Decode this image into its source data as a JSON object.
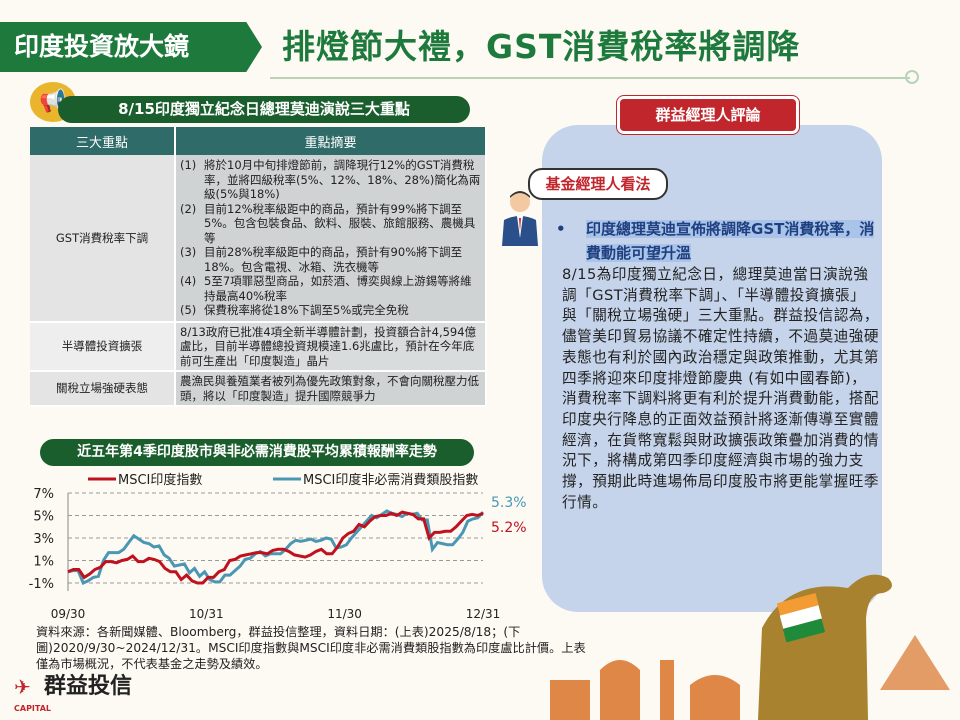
{
  "header": {
    "badge": "印度投資放大鏡",
    "title": "排燈節大禮，GST消費稅率將調降"
  },
  "table_section": {
    "title": "8/15印度獨立紀念日總理莫迪演說三大重點",
    "columns": [
      "三大重點",
      "重點摘要"
    ],
    "rows": [
      {
        "key": "GST消費稅率下調",
        "items": [
          {
            "n": "(1)",
            "t": "將於10月中旬排燈節前，調降現行12%的GST消費稅率，並將四級稅率(5%、12%、18%、28%)簡化為兩級(5%與18%)"
          },
          {
            "n": "(2)",
            "t": "目前12%稅率級距中的商品，預計有99%將下調至5%。包含包裝食品、飲料、服裝、旅館服務、農機具等"
          },
          {
            "n": "(3)",
            "t": "目前28%稅率級距中的商品，預計有90%將下調至18%。包含電視、冰箱、洗衣機等"
          },
          {
            "n": "(4)",
            "t": "5至7項罪惡型商品，如菸酒、博奕與線上游錫等將維持最高40%稅率"
          },
          {
            "n": "(5)",
            "t": "保費稅率將從18%下調至5%或完全免稅"
          }
        ]
      },
      {
        "key": "半導體投資擴張",
        "text": "8/13政府已批准4項全新半導體計劃，投資額合計4,594億盧比，目前半導體總投資規模達1.6兆盧比，預計在今年底前可生產出「印度製造」晶片"
      },
      {
        "key": "關稅立場強硬表態",
        "text": "農漁民與養殖業者被列為優先政策對象，不會向關稅壓力低頭，將以「印度製造」提升國際競爭力"
      }
    ]
  },
  "chart_section": {
    "title": "近五年第4季印度股市與非必需消費股平均累積報酬率走勢"
  },
  "chart_data": {
    "type": "line",
    "xlabels": [
      "09/30",
      "10/31",
      "11/30",
      "12/31"
    ],
    "ylabels": [
      "7%",
      "5%",
      "3%",
      "1%",
      "-1%"
    ],
    "ylim": [
      -1,
      7
    ],
    "grid": true,
    "legend": "top",
    "series": [
      {
        "name": "MSCI印度指數",
        "color": "#c0111f",
        "end_label": "5.2%",
        "values": [
          0,
          0.2,
          0.2,
          -0.5,
          -0.2,
          0.2,
          0.4,
          0.9,
          0.9,
          0.8,
          1.0,
          1.1,
          1.4,
          0.9,
          0.9,
          1.2,
          1.1,
          0.9,
          0.3,
          0.0,
          0.0,
          -0.7,
          -0.3,
          -0.8,
          -1.0,
          -1.0,
          -0.5,
          -0.5,
          0.0,
          0.2,
          1.0,
          1.1,
          1.4,
          1.5,
          1.6,
          1.7,
          1.7,
          1.6,
          1.9,
          2.0,
          2.0,
          1.8,
          1.5,
          1.4,
          1.3,
          1.5,
          1.8,
          2.0,
          1.6,
          1.6,
          2.2,
          3.0,
          3.4,
          3.6,
          4.2,
          4.0,
          4.5,
          4.9,
          5.0,
          5.0,
          5.2,
          5.0,
          5.3,
          5.2,
          5.1,
          4.7,
          4.7,
          3.0,
          3.5,
          3.5,
          3.6,
          3.6,
          4.0,
          4.5,
          5.0,
          5.1,
          5.0,
          5.2
        ]
      },
      {
        "name": "MSCI印度非必需消費類股指數",
        "color": "#4a97b4",
        "end_label": "5.3%",
        "values": [
          0,
          0.1,
          0.1,
          -1.0,
          -0.8,
          -0.5,
          -0.4,
          1.0,
          1.7,
          1.7,
          1.7,
          2.0,
          2.6,
          3.2,
          2.9,
          2.6,
          2.5,
          2.2,
          2.3,
          1.5,
          1.2,
          0.5,
          0.6,
          0.7,
          -0.1,
          0.3,
          -0.4,
          0.0,
          -0.7,
          -0.9,
          -0.9,
          -0.3,
          -0.3,
          0.1,
          0.5,
          1.1,
          1.2,
          1.6,
          1.8,
          1.4,
          1.6,
          1.6,
          1.6,
          2.0,
          2.5,
          2.8,
          2.7,
          2.8,
          2.9,
          2.7,
          2.8,
          3.0,
          2.9,
          2.1,
          2.2,
          2.4,
          3.0,
          3.5,
          4.0,
          4.5,
          5.0,
          4.8,
          5.1,
          5.4,
          5.2,
          5.1,
          4.9,
          5.2,
          5.1,
          5.2,
          4.6,
          4.6,
          2.0,
          2.6,
          2.5,
          2.4,
          2.4,
          2.9,
          3.5,
          4.5,
          4.7,
          4.8,
          5.3
        ]
      }
    ]
  },
  "source": "資料來源：各新聞媒體、Bloomberg，群益投信整理，資料日期：(上表)2025/8/18；(下圖)2020/9/30~2024/12/31。MSCI印度指數與MSCI印度非必需消費類股指數為印度盧比計價。上表僅為市場概況，不代表基金之走勢及績效。",
  "commentary": {
    "label": "群益經理人評論",
    "bubble": "基金經理人看法",
    "bullet": "印度總理莫迪宣佈將調降GST消費稅率，消費動能可望升溫",
    "body": "8/15為印度獨立紀念日，總理莫迪當日演說強調「GST消費稅率下調」、「半導體投資擴張」與「關稅立場強硬」三大重點。群益投信認為，儘管美印貿易協議不確定性持續，不過莫迪強硬表態也有利於國內政治穩定與政策推動，尤其第四季將迎來印度排燈節慶典 (有如中國春節)，消費稅率下調料將更有利於提升消費動能，搭配印度央行降息的正面效益預計將逐漸傳導至實體經濟，在貨幣寬鬆與財政擴張政策疊加消費的情況下，將構成第四季印度經濟與市場的強力支撐，預期此時進場佈局印度股市將更能掌握旺季行情。"
  },
  "logo": {
    "name": "群益投信",
    "en": "CAPITAL"
  }
}
